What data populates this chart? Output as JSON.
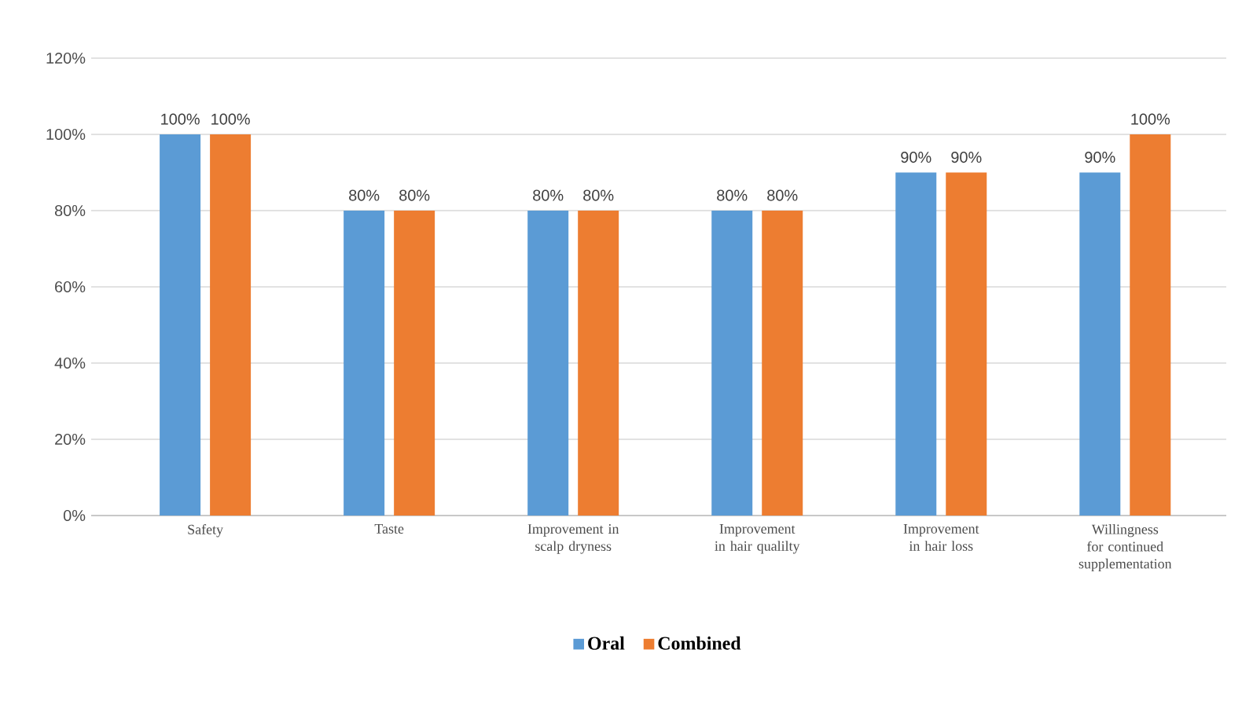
{
  "chart_data": {
    "type": "bar",
    "categories": [
      "Safety",
      "Taste",
      "Improvement in scalp dryness",
      "Improvement in hair qualilty",
      "Improvement in hair loss",
      "Willingness for continued supplementation"
    ],
    "series": [
      {
        "name": "Oral",
        "color": "#5b9bd5",
        "values": [
          100,
          80,
          80,
          80,
          90,
          90
        ],
        "value_labels": [
          "100%",
          "80%",
          "80%",
          "80%",
          "90%",
          "90%"
        ]
      },
      {
        "name": "Combined",
        "color": "#ed7d31",
        "values": [
          100,
          80,
          80,
          80,
          90,
          100
        ],
        "value_labels": [
          "100%",
          "80%",
          "80%",
          "80%",
          "90%",
          "100%"
        ]
      }
    ],
    "ylim": [
      0,
      120
    ],
    "yticks": [
      {
        "value": 0,
        "label": "0%"
      },
      {
        "value": 20,
        "label": "20%"
      },
      {
        "value": 40,
        "label": "40%"
      },
      {
        "value": 60,
        "label": "60%"
      },
      {
        "value": 80,
        "label": "80%"
      },
      {
        "value": 100,
        "label": "100%"
      },
      {
        "value": 120,
        "label": "120%"
      }
    ],
    "grid": "y",
    "legend": "bottom"
  }
}
